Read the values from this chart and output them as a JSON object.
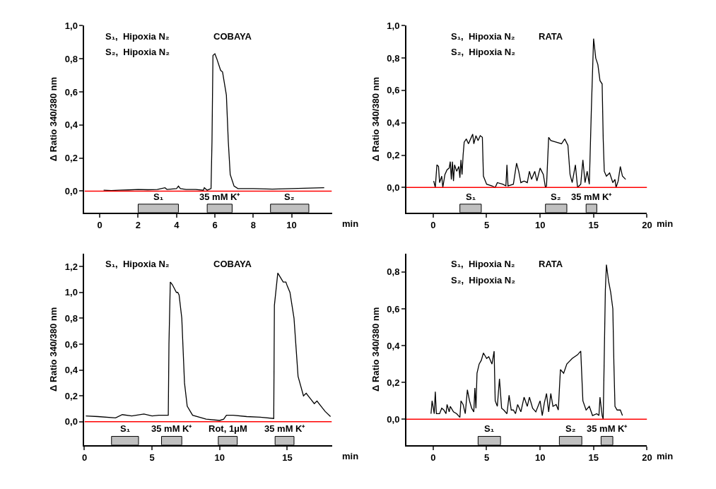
{
  "chart_data": [
    {
      "type": "line",
      "ylabel": "Δ Ratio 340/380 nm",
      "xlabel": "min",
      "xlim": [
        -0.8,
        12.1
      ],
      "xticks": [
        0,
        2,
        4,
        6,
        8,
        10
      ],
      "ylim": [
        -0.13,
        1.0
      ],
      "yticks": [
        {
          "value": 0,
          "label": "0,0"
        },
        {
          "value": 0.2,
          "label": "0,2"
        },
        {
          "value": 0.4,
          "label": "0,4"
        },
        {
          "value": 0.6,
          "label": "0,6"
        },
        {
          "value": 0.8,
          "label": "0,8"
        },
        {
          "value": 1.0,
          "label": "1,0"
        }
      ],
      "marker": "none",
      "line_style": "solid",
      "annotations": [
        "S₁,  Hipoxia N₂",
        "S₂,  Hipoxia N₂",
        "COBAYA"
      ],
      "ref_lines": [
        {
          "axis": "y",
          "value": 0,
          "color": "#ff0000"
        }
      ],
      "bands": [
        {
          "axis": "x",
          "from": 2,
          "to": 4.1,
          "label": "S₁",
          "color": "#c0c0c0"
        },
        {
          "axis": "x",
          "from": 5.6,
          "to": 6.9,
          "label": "35 mM K⁺",
          "color": "#c0c0c0"
        },
        {
          "axis": "x",
          "from": 8.9,
          "to": 10.9,
          "label": "S₂",
          "color": "#c0c0c0"
        }
      ],
      "series": [
        {
          "color": "#000000",
          "x": [
            0.2,
            0.6,
            1.0,
            1.5,
            2.0,
            2.5,
            3.0,
            3.4,
            3.5,
            4.0,
            4.1,
            4.2,
            4.5,
            5.0,
            5.4,
            5.45,
            5.6,
            5.8,
            5.85,
            5.9,
            6.0,
            6.1,
            6.3,
            6.4,
            6.6,
            6.7,
            6.8,
            7.0,
            7.2,
            8.0,
            9.0,
            10.0,
            11.0,
            11.7
          ],
          "values": [
            0.005,
            0.003,
            0.005,
            0.007,
            0.01,
            0.008,
            0.01,
            0.02,
            0.01,
            0.015,
            0.03,
            0.015,
            0.01,
            0.01,
            0.005,
            0.02,
            0.005,
            0.015,
            0.3,
            0.82,
            0.83,
            0.8,
            0.73,
            0.72,
            0.58,
            0.3,
            0.1,
            0.03,
            0.015,
            0.015,
            0.012,
            0.015,
            0.018,
            0.02
          ]
        }
      ]
    },
    {
      "type": "line",
      "ylabel": "Δ Ratio 340/380 nm",
      "xlabel": "min",
      "xlim": [
        -2.5,
        20
      ],
      "xticks": [
        0,
        5,
        10,
        15,
        20
      ],
      "ylim": [
        -0.155,
        1.0
      ],
      "yticks": [
        {
          "value": 0,
          "label": "0,0"
        },
        {
          "value": 0.2,
          "label": "0,2"
        },
        {
          "value": 0.4,
          "label": "0,4"
        },
        {
          "value": 0.6,
          "label": "0,6"
        },
        {
          "value": 0.8,
          "label": "0,8"
        },
        {
          "value": 1.0,
          "label": "1,0"
        }
      ],
      "marker": "none",
      "line_style": "solid",
      "annotations": [
        "S₁,  Hipoxia N₂",
        "S₂,  Hipoxia N₂",
        "RATA"
      ],
      "ref_lines": [
        {
          "axis": "y",
          "value": 0,
          "color": "#ff0000"
        }
      ],
      "bands": [
        {
          "axis": "x",
          "from": 2.5,
          "to": 4.5,
          "label": "S₁",
          "color": "#c0c0c0"
        },
        {
          "axis": "x",
          "from": 10.5,
          "to": 12.5,
          "label": "S₂",
          "color": "#c0c0c0"
        },
        {
          "axis": "x",
          "from": 14.3,
          "to": 15.3,
          "label": "35 mM K⁺",
          "color": "#c0c0c0"
        }
      ],
      "series": [
        {
          "color": "#000000",
          "x": [
            0.05,
            0.2,
            0.35,
            0.5,
            0.6,
            0.8,
            0.9,
            1.1,
            1.3,
            1.5,
            1.6,
            1.7,
            1.8,
            1.9,
            2.0,
            2.2,
            2.4,
            2.5,
            2.6,
            2.7,
            2.8,
            2.9,
            3.1,
            3.3,
            3.5,
            3.7,
            3.8,
            4.0,
            4.2,
            4.4,
            4.6,
            4.7,
            5.0,
            5.5,
            5.8,
            6.0,
            6.5,
            6.8,
            6.9,
            7.0,
            7.5,
            7.8,
            8.0,
            8.2,
            8.5,
            8.8,
            9.0,
            9.2,
            9.5,
            9.7,
            10.0,
            10.3,
            10.5,
            10.6,
            10.8,
            11.0,
            11.5,
            12.0,
            12.3,
            12.6,
            12.8,
            13.0,
            13.3,
            13.5,
            13.8,
            14.0,
            14.2,
            14.4,
            14.6,
            14.8,
            15.0,
            15.2,
            15.4,
            15.6,
            15.8,
            15.9,
            16.0,
            16.2,
            16.5,
            16.8,
            17.0,
            17.1,
            17.3,
            17.5,
            17.7,
            18.0
          ],
          "values": [
            0.04,
            0.0,
            0.14,
            0.13,
            0.03,
            0.07,
            0.0,
            0.08,
            0.11,
            0.12,
            0.16,
            0.05,
            0.16,
            0.04,
            0.14,
            0.1,
            0.13,
            0.06,
            0.17,
            0.08,
            0.2,
            0.28,
            0.3,
            0.27,
            0.3,
            0.33,
            0.27,
            0.32,
            0.29,
            0.32,
            0.31,
            0.07,
            0.02,
            0.01,
            0.0,
            0.03,
            0.02,
            0.01,
            0.14,
            0.01,
            0.02,
            0.15,
            0.1,
            0.03,
            0.04,
            0.03,
            0.1,
            0.05,
            0.1,
            0.04,
            0.12,
            0.08,
            0.0,
            0.01,
            0.31,
            0.29,
            0.28,
            0.27,
            0.3,
            0.26,
            0.08,
            0.03,
            0.14,
            0.0,
            0.02,
            0.17,
            0.03,
            0.1,
            0.02,
            0.5,
            0.92,
            0.8,
            0.76,
            0.66,
            0.64,
            0.3,
            0.1,
            0.07,
            0.09,
            0.03,
            0.05,
            0.0,
            0.04,
            0.13,
            0.07,
            0.05
          ]
        }
      ]
    },
    {
      "type": "line",
      "ylabel": "Δ Ratio 340/380 nm",
      "xlabel": "min",
      "xlim": [
        0,
        18.3
      ],
      "xticks": [
        0,
        5,
        10,
        15
      ],
      "ylim": [
        -0.18,
        1.3
      ],
      "yticks": [
        {
          "value": 0,
          "label": "0,0"
        },
        {
          "value": 0.2,
          "label": "0,2"
        },
        {
          "value": 0.4,
          "label": "0,4"
        },
        {
          "value": 0.6,
          "label": "0,6"
        },
        {
          "value": 0.8,
          "label": "0,8"
        },
        {
          "value": 1.0,
          "label": "1,0"
        },
        {
          "value": 1.2,
          "label": "1,2"
        }
      ],
      "marker": "none",
      "line_style": "solid",
      "annotations": [
        "S₁,  Hipoxia N₂",
        "COBAYA"
      ],
      "ref_lines": [
        {
          "axis": "y",
          "value": 0,
          "color": "#ff0000"
        }
      ],
      "bands": [
        {
          "axis": "x",
          "from": 2,
          "to": 4,
          "label": "S₁",
          "color": "#c0c0c0"
        },
        {
          "axis": "x",
          "from": 5.7,
          "to": 7.2,
          "label": "35 mM K⁺",
          "color": "#c0c0c0"
        },
        {
          "axis": "x",
          "from": 9.9,
          "to": 11.3,
          "label": "Rot, 1μM",
          "color": "#c0c0c0"
        },
        {
          "axis": "x",
          "from": 14.1,
          "to": 15.5,
          "label": "35 mM K⁺",
          "color": "#c0c0c0"
        }
      ],
      "series": [
        {
          "color": "#000000",
          "x": [
            0.1,
            1.0,
            2.3,
            2.8,
            3.5,
            4.4,
            5.0,
            5.5,
            6.2,
            6.25,
            6.35,
            6.5,
            6.8,
            6.9,
            7.0,
            7.2,
            7.4,
            7.6,
            8.0,
            9.0,
            10.0,
            10.3,
            10.5,
            11.0,
            12.0,
            13.0,
            14.0,
            14.05,
            14.3,
            14.7,
            14.9,
            15.0,
            15.2,
            15.5,
            15.8,
            16.2,
            16.4,
            16.7,
            17.0,
            17.2,
            17.5,
            17.8,
            18.2
          ],
          "values": [
            0.045,
            0.04,
            0.03,
            0.055,
            0.045,
            0.06,
            0.045,
            0.05,
            0.05,
            0.6,
            1.08,
            1.06,
            1.0,
            1.0,
            0.98,
            0.8,
            0.3,
            0.12,
            0.05,
            0.02,
            0.01,
            0.02,
            0.05,
            0.05,
            0.04,
            0.035,
            0.025,
            0.9,
            1.15,
            1.08,
            1.08,
            1.05,
            1.0,
            0.8,
            0.35,
            0.2,
            0.22,
            0.18,
            0.14,
            0.16,
            0.12,
            0.08,
            0.04
          ]
        }
      ]
    },
    {
      "type": "line",
      "ylabel": "Δ Ratio 340/380 nm",
      "xlabel": "min",
      "xlim": [
        -2.5,
        20
      ],
      "xticks": [
        0,
        5,
        10,
        15,
        20
      ],
      "ylim": [
        -0.14,
        0.9
      ],
      "yticks": [
        {
          "value": 0,
          "label": "0,0"
        },
        {
          "value": 0.2,
          "label": "0,2"
        },
        {
          "value": 0.4,
          "label": "0,4"
        },
        {
          "value": 0.6,
          "label": "0,6"
        },
        {
          "value": 0.8,
          "label": "0,8"
        }
      ],
      "marker": "none",
      "line_style": "solid",
      "annotations": [
        "S₁,  Hipoxia N₂",
        "S₂,  Hipoxia N₂",
        "RATA"
      ],
      "ref_lines": [
        {
          "axis": "y",
          "value": 0,
          "color": "#ff0000"
        }
      ],
      "bands": [
        {
          "axis": "x",
          "from": 4.2,
          "to": 6.3,
          "label": "S₁",
          "color": "#c0c0c0"
        },
        {
          "axis": "x",
          "from": 11.8,
          "to": 13.9,
          "label": "S₂",
          "color": "#c0c0c0"
        },
        {
          "axis": "x",
          "from": 15.7,
          "to": 16.8,
          "label": "35 mM K⁺",
          "color": "#c0c0c0"
        }
      ],
      "series": [
        {
          "color": "#000000",
          "x": [
            -0.2,
            -0.1,
            0.1,
            0.2,
            0.3,
            0.6,
            0.8,
            1.0,
            1.2,
            1.3,
            1.5,
            1.6,
            1.9,
            2.2,
            2.5,
            2.6,
            2.8,
            3.0,
            3.2,
            3.4,
            3.6,
            3.8,
            3.9,
            4.0,
            4.1,
            4.3,
            4.5,
            4.7,
            5.0,
            5.2,
            5.5,
            5.7,
            5.8,
            6.0,
            6.2,
            6.4,
            6.6,
            6.9,
            7.1,
            7.3,
            7.5,
            7.7,
            7.9,
            8.2,
            8.5,
            8.8,
            9.0,
            9.3,
            9.6,
            10.0,
            10.2,
            10.4,
            10.6,
            10.8,
            11.0,
            11.2,
            11.5,
            11.7,
            11.9,
            12.2,
            12.5,
            13.0,
            13.5,
            13.8,
            14.0,
            14.3,
            14.6,
            14.9,
            15.3,
            15.5,
            15.6,
            15.8,
            15.9,
            16.1,
            16.2,
            16.4,
            16.6,
            16.8,
            16.9,
            17.0,
            17.2,
            17.5,
            17.7
          ],
          "values": [
            0.03,
            0.1,
            0.03,
            0.15,
            0.03,
            0.03,
            0.06,
            0.05,
            0.03,
            0.08,
            0.04,
            0.07,
            0.04,
            0.03,
            0.01,
            0.1,
            0.08,
            0.03,
            0.16,
            0.1,
            0.06,
            0.04,
            0.17,
            0.06,
            0.25,
            0.3,
            0.32,
            0.36,
            0.33,
            0.34,
            0.3,
            0.37,
            0.1,
            0.07,
            0.22,
            0.06,
            0.05,
            0.03,
            0.13,
            0.05,
            0.05,
            0.03,
            0.08,
            0.04,
            0.12,
            0.07,
            0.12,
            0.06,
            0.04,
            0.1,
            0.02,
            0.09,
            0.14,
            0.04,
            0.14,
            0.07,
            0.08,
            0.05,
            0.27,
            0.25,
            0.3,
            0.33,
            0.35,
            0.37,
            0.1,
            0.05,
            0.07,
            0.02,
            0.03,
            0.02,
            0.12,
            0.02,
            0.0,
            0.7,
            0.84,
            0.75,
            0.69,
            0.6,
            0.3,
            0.07,
            0.05,
            0.05,
            0.02
          ]
        }
      ]
    }
  ]
}
